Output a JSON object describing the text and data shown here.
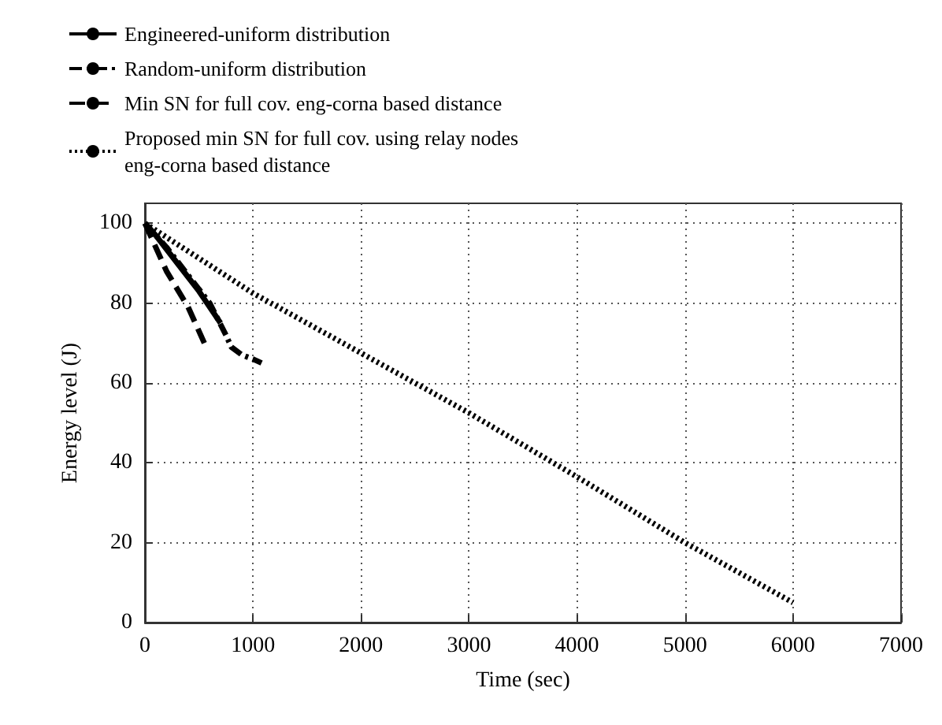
{
  "chart_data": {
    "type": "line",
    "xlabel": "Time (sec)",
    "ylabel": "Energy level (J)",
    "xlim": [
      0,
      7000
    ],
    "xticks": [
      0,
      1000,
      2000,
      3000,
      4000,
      5000,
      6000,
      7000
    ],
    "ylim": [
      0,
      105
    ],
    "yticks": [
      0,
      20,
      40,
      60,
      80,
      100
    ],
    "grid": true,
    "legend": "top left",
    "marker": "none",
    "series": [
      {
        "name": "Engineered-uniform distribution",
        "color": "#000000",
        "line_style": "solid",
        "x": [
          0,
          100,
          300,
          500,
          700
        ],
        "values": [
          100,
          97,
          90,
          83,
          75
        ]
      },
      {
        "name": "Random-uniform distribution",
        "color": "#000000",
        "line_style": "dashdot",
        "x": [
          0,
          200,
          400,
          600,
          750,
          800,
          900,
          1000,
          1080
        ],
        "values": [
          100,
          94,
          87,
          80,
          72,
          69,
          67,
          66,
          65
        ]
      },
      {
        "name": "Min SN for full cov. eng-corna based distance",
        "color": "#000000",
        "line_style": "dashed",
        "x": [
          0,
          200,
          400,
          550
        ],
        "values": [
          100,
          88,
          79,
          70
        ]
      },
      {
        "name": "Proposed min SN for full cov. using relay nodes\neng-corna based distance",
        "color": "#000000",
        "line_style": "dotted",
        "x": [
          0,
          1000,
          2000,
          3000,
          4000,
          5000,
          6000
        ],
        "values": [
          100,
          82.5,
          67.5,
          52.5,
          36.5,
          20,
          5
        ]
      }
    ]
  }
}
